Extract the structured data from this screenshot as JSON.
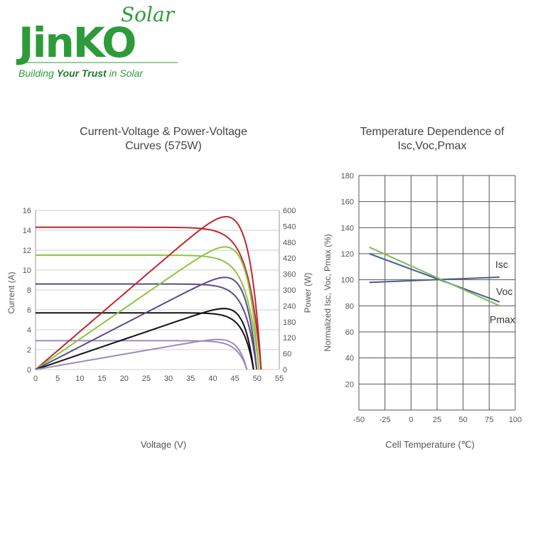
{
  "brand": {
    "name": "JinKO",
    "suffix": "Solar",
    "tagline_start": "Building ",
    "tagline_bold": "Your Trust",
    "tagline_end": " in Solar",
    "green": "#2e9b3a",
    "dark_green": "#1d7a2c"
  },
  "chart_data": [
    {
      "type": "line",
      "title_line1": "Current-Voltage & Power-Voltage",
      "title_line2": "Curves (575W)",
      "xlabel": "Voltage (V)",
      "ylabel": "Current (A)",
      "y2label": "Power (W)",
      "xlim": [
        0,
        55
      ],
      "ylim": [
        0,
        16
      ],
      "y2lim": [
        0,
        600
      ],
      "xticks": [
        0,
        5,
        10,
        15,
        20,
        25,
        30,
        35,
        40,
        45,
        50,
        55
      ],
      "yticks": [
        0,
        2,
        4,
        6,
        8,
        10,
        12,
        14,
        16
      ],
      "y2ticks": [
        0,
        60,
        120,
        180,
        240,
        300,
        360,
        420,
        480,
        540,
        600
      ],
      "grid": "horizontal",
      "series": [
        {
          "color": "#c0272d",
          "isc": 14.3,
          "voc": 50.9,
          "vmp": 42.3,
          "pmax": 575
        },
        {
          "color": "#8cc63f",
          "isc": 11.5,
          "voc": 50.4,
          "vmp": 42.4,
          "pmax": 462
        },
        {
          "color": "#5b4a8b",
          "isc": 8.6,
          "voc": 49.9,
          "vmp": 42.3,
          "pmax": 347
        },
        {
          "color": "#111111",
          "isc": 5.7,
          "voc": 49.2,
          "vmp": 42.3,
          "pmax": 230
        },
        {
          "color": "#9b8bbf",
          "isc": 2.9,
          "voc": 47.7,
          "vmp": 41.8,
          "pmax": 113
        }
      ]
    },
    {
      "type": "line",
      "title_line1": "Temperature Dependence of",
      "title_line2": "Isc,Voc,Pmax",
      "xlabel": "Cell Temperature (℃)",
      "ylabel": "Normalized Isc, Voc, Pmax (%)",
      "xlim": [
        -50,
        100
      ],
      "ylim": [
        0,
        180
      ],
      "xticks": [
        -50,
        -25,
        0,
        25,
        50,
        75,
        100
      ],
      "yticks": [
        20,
        40,
        60,
        80,
        100,
        120,
        140,
        160,
        180
      ],
      "grid": "both",
      "series": [
        {
          "name": "Isc",
          "color": "#4a5f8a",
          "x": [
            -40,
            85
          ],
          "y": [
            98,
            102
          ]
        },
        {
          "name": "Voc",
          "color": "#4a5f8a",
          "x": [
            -40,
            85
          ],
          "y": [
            120,
            83
          ]
        },
        {
          "name": "Pmax",
          "color": "#7dbb59",
          "x": [
            -40,
            85
          ],
          "y": [
            125,
            80
          ]
        }
      ]
    }
  ]
}
